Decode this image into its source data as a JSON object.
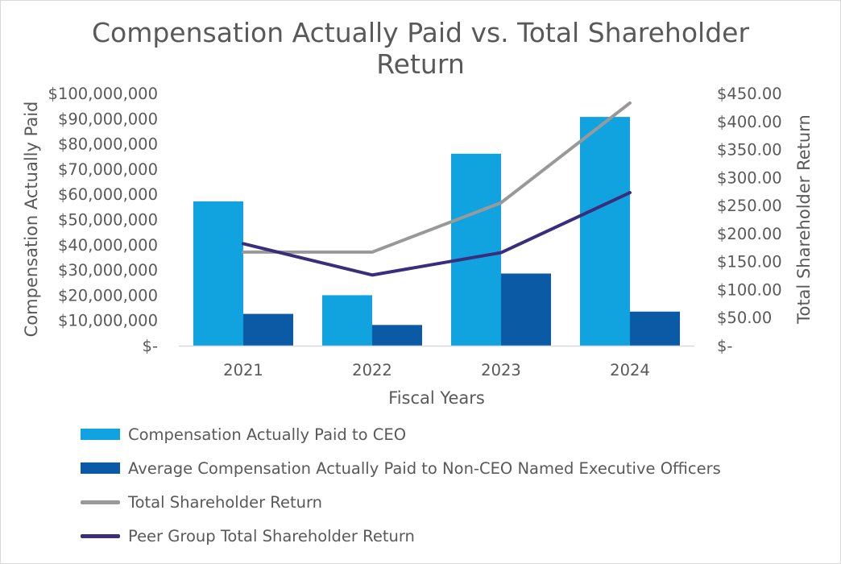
{
  "chart_data": {
    "type": "bar",
    "title": "Compensation Actually Paid vs. Total Shareholder Return",
    "title_lines": [
      "Compensation Actually Paid vs. Total Shareholder",
      "Return"
    ],
    "xlabel": "Fiscal Years",
    "ylabel": "Compensation Actually Paid",
    "y2label": "Total Shareholder Return",
    "categories": [
      "2021",
      "2022",
      "2023",
      "2024"
    ],
    "ylim": [
      0,
      100000000
    ],
    "y2lim": [
      0,
      450
    ],
    "y_ticks": [
      {
        "value": 0,
        "label": "$-"
      },
      {
        "value": 10000000,
        "label": "$10,000,000"
      },
      {
        "value": 20000000,
        "label": "$20,000,000"
      },
      {
        "value": 30000000,
        "label": "$30,000,000"
      },
      {
        "value": 40000000,
        "label": "$40,000,000"
      },
      {
        "value": 50000000,
        "label": "$50,000,000"
      },
      {
        "value": 60000000,
        "label": "$60,000,000"
      },
      {
        "value": 70000000,
        "label": "$70,000,000"
      },
      {
        "value": 80000000,
        "label": "$80,000,000"
      },
      {
        "value": 90000000,
        "label": "$90,000,000"
      },
      {
        "value": 100000000,
        "label": "$100,000,000"
      }
    ],
    "y2_ticks": [
      {
        "value": 0,
        "label": "$-"
      },
      {
        "value": 50,
        "label": "$50.00"
      },
      {
        "value": 100,
        "label": "$100.00"
      },
      {
        "value": 150,
        "label": "$150.00"
      },
      {
        "value": 200,
        "label": "$200.00"
      },
      {
        "value": 250,
        "label": "$250.00"
      },
      {
        "value": 300,
        "label": "$300.00"
      },
      {
        "value": 350,
        "label": "$350.00"
      },
      {
        "value": 400,
        "label": "$400.00"
      },
      {
        "value": 450,
        "label": "$450.00"
      }
    ],
    "series": [
      {
        "name": "Compensation Actually Paid to CEO",
        "kind": "bar",
        "axis": "left",
        "color": "#11a3e0",
        "values": [
          57200000,
          20000000,
          76100000,
          90700000
        ]
      },
      {
        "name": "Average Compensation Actually Paid to Non-CEO Named Executive Officers",
        "kind": "bar",
        "axis": "left",
        "color": "#0b5aa6",
        "values": [
          12600000,
          8200000,
          28600000,
          13500000
        ]
      },
      {
        "name": "Total Shareholder Return",
        "kind": "line",
        "axis": "right",
        "color": "#999999",
        "values": [
          167,
          167,
          255,
          433
        ]
      },
      {
        "name": "Peer Group Total Shareholder Return",
        "kind": "line",
        "axis": "right",
        "color": "#3b2c7c",
        "values": [
          182,
          126,
          166,
          273
        ]
      }
    ],
    "legend_position": "bottom-left",
    "grid": false
  }
}
